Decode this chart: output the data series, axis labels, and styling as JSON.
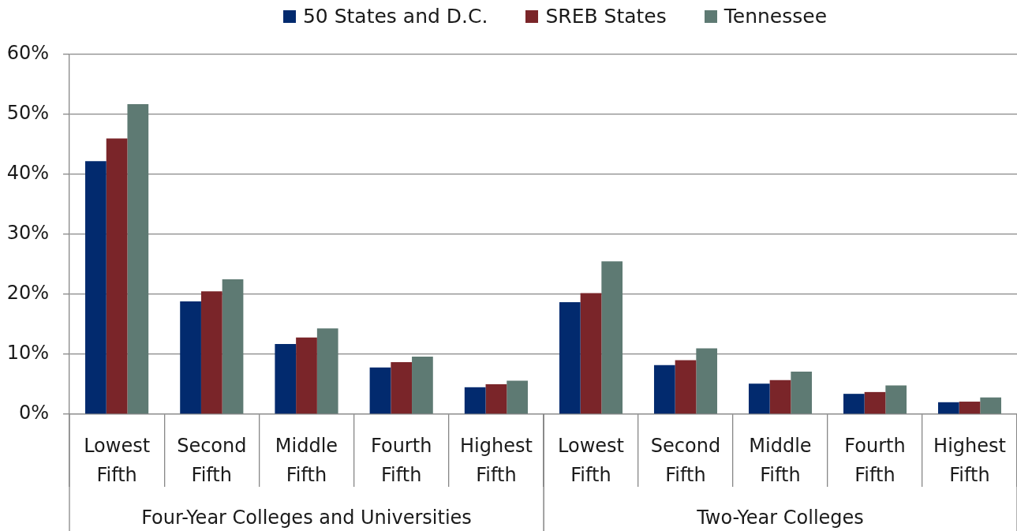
{
  "chart_data": [
    {
      "type": "bar",
      "xlabel": "Four-Year Colleges and Universities",
      "categories": [
        "Lowest Fifth",
        "Second Fifth",
        "Middle Fifth",
        "Fourth Fifth",
        "Highest Fifth"
      ],
      "series": [
        {
          "name": "50 States and D.C.",
          "color": "#022a6e",
          "values": [
            42.2,
            18.8,
            11.7,
            7.8,
            4.5
          ]
        },
        {
          "name": "SREB States",
          "color": "#7a2529",
          "values": [
            46.0,
            20.5,
            12.8,
            8.7,
            5.0
          ]
        },
        {
          "name": "Tennessee",
          "color": "#5e7a73",
          "values": [
            51.7,
            22.5,
            14.3,
            9.6,
            5.6
          ]
        }
      ],
      "ylim": [
        0,
        60
      ],
      "yticks": [
        {
          "value": 0,
          "label": "0%"
        },
        {
          "value": 10,
          "label": "10%"
        },
        {
          "value": 20,
          "label": "20%"
        },
        {
          "value": 30,
          "label": "30%"
        },
        {
          "value": 40,
          "label": "40%"
        },
        {
          "value": 50,
          "label": "50%"
        },
        {
          "value": 60,
          "label": "60%"
        }
      ],
      "grid": "y",
      "legend": "top"
    },
    {
      "type": "bar",
      "xlabel": "Two-Year Colleges",
      "categories": [
        "Lowest Fifth",
        "Second Fifth",
        "Middle Fifth",
        "Fourth Fifth",
        "Highest Fifth"
      ],
      "series": [
        {
          "color": "#022a6e",
          "values": [
            18.7,
            8.2,
            5.1,
            3.4,
            2.0
          ]
        },
        {
          "color": "#7a2529",
          "values": [
            20.2,
            9.0,
            5.7,
            3.7,
            2.1
          ]
        },
        {
          "color": "#5e7a73",
          "values": [
            25.5,
            11.0,
            7.1,
            4.8,
            2.8
          ]
        }
      ],
      "ylim": [
        0,
        60
      ],
      "yticks": [
        0,
        10,
        20,
        30,
        40,
        50,
        60
      ],
      "grid": "y",
      "tick_labels": "x"
    }
  ]
}
